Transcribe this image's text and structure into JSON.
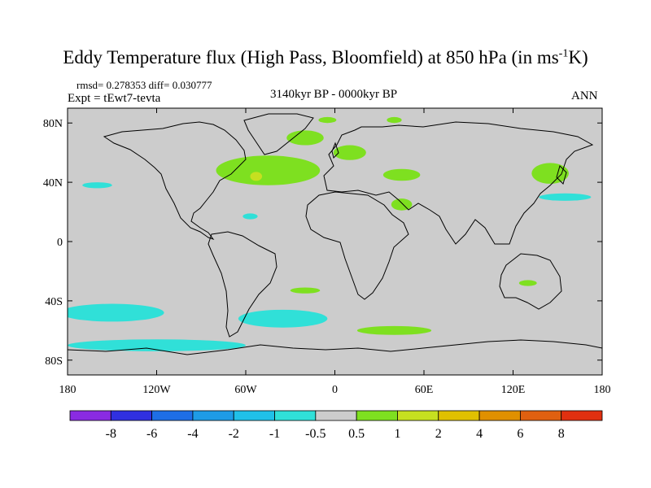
{
  "chart_data": {
    "type": "heatmap",
    "title_main": "Eddy Temperature flux (High Pass, Bloomfield) at 850 hPa (in ms",
    "title_sup": "-1",
    "title_end": "K)",
    "rmsd_label": "rmsd= 0.278353 diff= 0.030777",
    "expt_label": "Expt = tEwt7-tevta",
    "period_label": "3140kyr BP - 0000kyr BP",
    "season_label": "ANN",
    "lon_range": [
      -180,
      180
    ],
    "lat_range": [
      -90,
      90
    ],
    "x_ticks": [
      {
        "lon": -180,
        "label": "180"
      },
      {
        "lon": -120,
        "label": "120W"
      },
      {
        "lon": -60,
        "label": "60W"
      },
      {
        "lon": 0,
        "label": "0"
      },
      {
        "lon": 60,
        "label": "60E"
      },
      {
        "lon": 120,
        "label": "120E"
      },
      {
        "lon": 180,
        "label": "180"
      }
    ],
    "y_ticks": [
      {
        "lat": 80,
        "label": "80N"
      },
      {
        "lat": 40,
        "label": "40N"
      },
      {
        "lat": 0,
        "label": "0"
      },
      {
        "lat": -40,
        "label": "40S"
      },
      {
        "lat": -80,
        "label": "80S"
      }
    ],
    "colorbar": {
      "colors": [
        "#8a2be2",
        "#3030e0",
        "#1e6ee6",
        "#1e9be6",
        "#20c0e8",
        "#30e0d8",
        "#cccccc",
        "#7ee020",
        "#c6e020",
        "#e0c000",
        "#e09000",
        "#e06010",
        "#e03010"
      ],
      "labels": [
        "-8",
        "-6",
        "-4",
        "-2",
        "-1",
        "-0.5",
        "0.5",
        "1",
        "2",
        "4",
        "6",
        "8"
      ]
    },
    "background_value_color": "#cccccc",
    "regions": [
      {
        "name": "north-atlantic-storm-track",
        "level": "0.5 to 1",
        "color": "#7ee020",
        "center": [
          -45,
          48
        ],
        "span": [
          70,
          20
        ]
      },
      {
        "name": "atlantic-peak",
        "level": "1 to 2",
        "color": "#c6e020",
        "center": [
          -53,
          44
        ],
        "span": [
          8,
          6
        ]
      },
      {
        "name": "greenland-sea",
        "level": "0.5 to 1",
        "color": "#7ee020",
        "center": [
          -20,
          70
        ],
        "span": [
          25,
          10
        ]
      },
      {
        "name": "arctic-north-atlantic",
        "level": "0.5 to 1",
        "color": "#7ee020",
        "center": [
          -5,
          82
        ],
        "span": [
          12,
          4
        ]
      },
      {
        "name": "barents-sea",
        "level": "0.5 to 1",
        "color": "#7ee020",
        "center": [
          40,
          82
        ],
        "span": [
          10,
          4
        ]
      },
      {
        "name": "scandinavia",
        "level": "0.5 to 1",
        "color": "#7ee020",
        "center": [
          10,
          60
        ],
        "span": [
          22,
          10
        ]
      },
      {
        "name": "black-sea-caspian",
        "level": "0.5 to 1",
        "color": "#7ee020",
        "center": [
          45,
          45
        ],
        "span": [
          25,
          8
        ]
      },
      {
        "name": "arabia",
        "level": "0.5 to 1",
        "color": "#7ee020",
        "center": [
          45,
          25
        ],
        "span": [
          14,
          8
        ]
      },
      {
        "name": "west-pacific-japan",
        "level": "0.5 to 1",
        "color": "#7ee020",
        "center": [
          145,
          46
        ],
        "span": [
          25,
          14
        ]
      },
      {
        "name": "north-pacific-negative",
        "level": "-1 to -0.5",
        "color": "#30e0d8",
        "center": [
          155,
          30
        ],
        "span": [
          35,
          5
        ]
      },
      {
        "name": "north-pacific-west-negative",
        "level": "-1 to -0.5",
        "color": "#30e0d8",
        "center": [
          -160,
          38
        ],
        "span": [
          20,
          4
        ]
      },
      {
        "name": "west-atlantic-negative",
        "level": "-1 to -0.5",
        "color": "#30e0d8",
        "center": [
          -57,
          17
        ],
        "span": [
          10,
          4
        ]
      },
      {
        "name": "south-pacific-negative",
        "level": "-1 to -0.5",
        "color": "#30e0d8",
        "center": [
          -150,
          -48
        ],
        "span": [
          70,
          12
        ]
      },
      {
        "name": "south-atlantic-negative",
        "level": "-1 to -0.5",
        "color": "#30e0d8",
        "center": [
          -35,
          -52
        ],
        "span": [
          60,
          12
        ]
      },
      {
        "name": "southern-ocean-negative",
        "level": "-1 to -0.5",
        "color": "#30e0d8",
        "center": [
          -120,
          -70
        ],
        "span": [
          120,
          8
        ]
      },
      {
        "name": "south-indian-positive",
        "level": "0.5 to 1",
        "color": "#7ee020",
        "center": [
          40,
          -60
        ],
        "span": [
          50,
          6
        ]
      },
      {
        "name": "south-atlantic-positive",
        "level": "0.5 to 1",
        "color": "#7ee020",
        "center": [
          -20,
          -33
        ],
        "span": [
          20,
          4
        ]
      },
      {
        "name": "australia-positive",
        "level": "0.5 to 1",
        "color": "#7ee020",
        "center": [
          130,
          -28
        ],
        "span": [
          12,
          4
        ]
      }
    ]
  }
}
